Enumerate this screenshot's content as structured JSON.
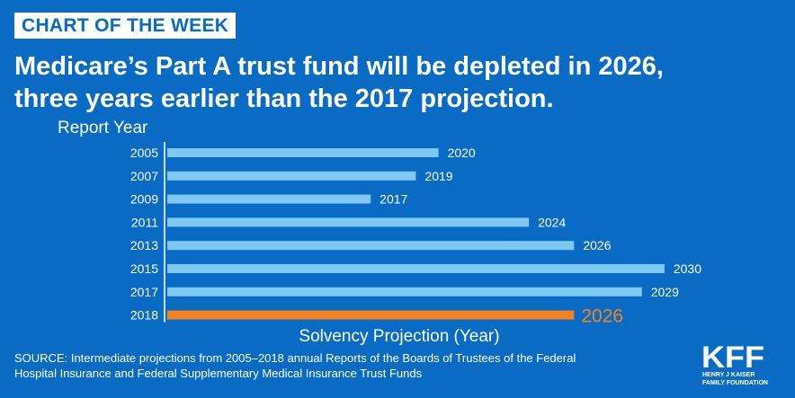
{
  "badge": "CHART OF THE WEEK",
  "headline": {
    "line1": "Medicare’s Part A trust fund will be depleted in 2026,",
    "line2": "three years earlier than the 2017 projection."
  },
  "colors": {
    "background": "#0a6bc4",
    "bar": "#7ec8f2",
    "highlight_bar": "#f58220",
    "highlight_text": "#f58220"
  },
  "chart_data": {
    "type": "bar",
    "orientation": "horizontal",
    "ylabel": "Report Year",
    "xlabel": "Solvency Projection (Year)",
    "categories": [
      "2005",
      "2007",
      "2009",
      "2011",
      "2013",
      "2015",
      "2017",
      "2018"
    ],
    "values": [
      2020,
      2019,
      2017,
      2024,
      2026,
      2030,
      2029,
      2026
    ],
    "data_labels": [
      "2020",
      "2019",
      "2017",
      "2024",
      "2026",
      "2030",
      "2029",
      "2026"
    ],
    "highlight_index": 7,
    "xlim": [
      2008,
      2031
    ],
    "grid": false,
    "legend": "none"
  },
  "source": {
    "line1": "SOURCE: Intermediate projections from 2005–2018 annual Reports of the Boards of Trustees of the Federal",
    "line2": "Hospital Insurance and Federal Supplementary Medical Insurance Trust Funds"
  },
  "logo": {
    "mark": "KFF",
    "line1": "HENRY J KAISER",
    "line2": "FAMILY FOUNDATION"
  }
}
